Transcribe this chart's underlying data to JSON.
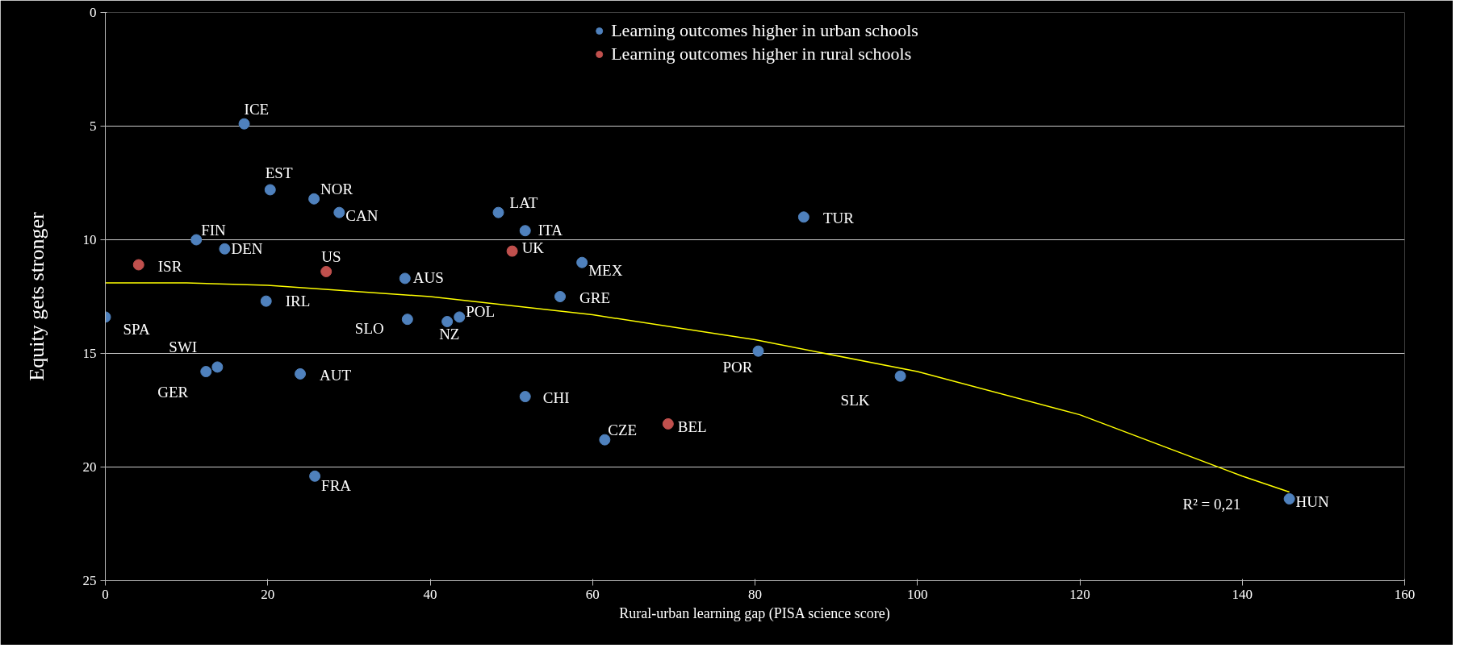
{
  "chart_data": {
    "type": "scatter",
    "xlabel": "Rural-urban learning gap (PISA science score)",
    "ylabel": "Equity gets stronger",
    "xlim": [
      0,
      160
    ],
    "xticks": [
      0,
      20,
      40,
      60,
      80,
      100,
      120,
      140,
      160
    ],
    "ylim": [
      25,
      0
    ],
    "yticks": [
      0,
      5,
      10,
      15,
      20,
      25
    ],
    "grid": "y",
    "legend": "top",
    "marker": "circle",
    "series": [
      {
        "name": "Learning outcomes higher in urban schools",
        "color": "#4f81bd",
        "x": [
          17.1,
          20.3,
          25.7,
          28.8,
          11.2,
          14.7,
          36.9,
          19.8,
          0,
          37.2,
          42.1,
          43.6,
          48.4,
          51.7,
          58.7,
          56.0,
          13.8,
          12.4,
          24.0,
          51.7,
          61.5,
          25.8,
          86.0,
          80.4,
          97.9,
          145.8
        ],
        "values": [
          4.9,
          7.8,
          8.2,
          8.8,
          10.0,
          10.4,
          11.7,
          12.7,
          13.4,
          13.5,
          13.6,
          13.4,
          8.8,
          9.6,
          11.0,
          12.5,
          15.6,
          15.8,
          15.9,
          16.9,
          18.8,
          20.4,
          9.0,
          14.9,
          16.0,
          21.4
        ]
      },
      {
        "name": "Learning outcomes higher in rural schools",
        "color": "#c0504d",
        "x": [
          4.1,
          27.2,
          50.1,
          69.3
        ],
        "values": [
          11.1,
          11.4,
          10.5,
          18.1
        ]
      },
      {
        "type": "line",
        "marker": "none",
        "color": "#ffff00",
        "x": [
          0,
          10,
          20,
          40,
          60,
          80,
          100,
          120,
          140,
          145.8
        ],
        "values": [
          11.9,
          11.9,
          12.0,
          12.5,
          13.3,
          14.4,
          15.8,
          17.7,
          20.4,
          21.1
        ]
      }
    ],
    "annotations": [
      {
        "text": "ICE",
        "x": 17.1,
        "y": 4.9
      },
      {
        "text": "EST",
        "x": 20.3,
        "y": 7.8
      },
      {
        "text": "NOR",
        "x": 25.7,
        "y": 8.2
      },
      {
        "text": "CAN",
        "x": 28.8,
        "y": 8.8
      },
      {
        "text": "FIN",
        "x": 11.2,
        "y": 10.0
      },
      {
        "text": "DEN",
        "x": 14.7,
        "y": 10.4
      },
      {
        "text": "AUS",
        "x": 36.9,
        "y": 11.7
      },
      {
        "text": "IRL",
        "x": 19.8,
        "y": 12.7
      },
      {
        "text": "SPA",
        "x": 0,
        "y": 13.4
      },
      {
        "text": "SLO",
        "x": 37.2,
        "y": 13.5
      },
      {
        "text": "NZ",
        "x": 42.1,
        "y": 13.6
      },
      {
        "text": "POL",
        "x": 43.6,
        "y": 13.4
      },
      {
        "text": "LAT",
        "x": 48.4,
        "y": 8.8
      },
      {
        "text": "ITA",
        "x": 51.7,
        "y": 9.6
      },
      {
        "text": "MEX",
        "x": 58.7,
        "y": 11.0
      },
      {
        "text": "GRE",
        "x": 56.0,
        "y": 12.5
      },
      {
        "text": "SWI",
        "x": 13.8,
        "y": 15.6
      },
      {
        "text": "GER",
        "x": 12.4,
        "y": 15.8
      },
      {
        "text": "AUT",
        "x": 24.0,
        "y": 15.9
      },
      {
        "text": "CHI",
        "x": 51.7,
        "y": 16.9
      },
      {
        "text": "CZE",
        "x": 61.5,
        "y": 18.8
      },
      {
        "text": "FRA",
        "x": 25.8,
        "y": 20.4
      },
      {
        "text": "TUR",
        "x": 86.0,
        "y": 9.0
      },
      {
        "text": "POR",
        "x": 80.4,
        "y": 14.9
      },
      {
        "text": "SLK",
        "x": 97.9,
        "y": 16.0
      },
      {
        "text": "HUN",
        "x": 145.8,
        "y": 21.4
      },
      {
        "text": "ISR",
        "x": 4.1,
        "y": 11.1
      },
      {
        "text": "US",
        "x": 27.2,
        "y": 11.4
      },
      {
        "text": "UK",
        "x": 50.1,
        "y": 10.5
      },
      {
        "text": "BEL",
        "x": 69.3,
        "y": 18.1
      },
      "R² = 0,21"
    ]
  }
}
